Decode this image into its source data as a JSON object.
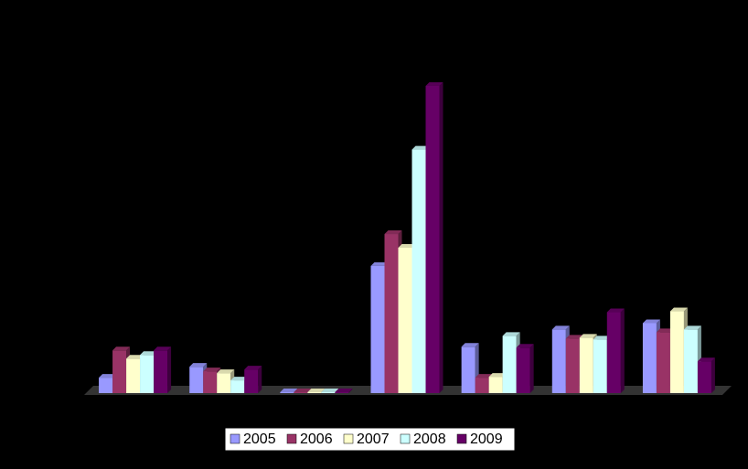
{
  "chart_data": {
    "type": "bar3d",
    "categories": [
      null,
      null,
      null,
      null,
      null,
      null,
      null
    ],
    "series": [
      {
        "name": "2005",
        "color": "#9999ff",
        "values": [
          17,
          29,
          1,
          140,
          51,
          70,
          77
        ]
      },
      {
        "name": "2006",
        "color": "#993366",
        "values": [
          47,
          24,
          1,
          175,
          17,
          60,
          67
        ]
      },
      {
        "name": "2007",
        "color": "#ffffcc",
        "values": [
          38,
          22,
          1,
          160,
          18,
          61,
          90
        ]
      },
      {
        "name": "2008",
        "color": "#ccffff",
        "values": [
          42,
          14,
          1,
          268,
          63,
          59,
          70
        ]
      },
      {
        "name": "2009",
        "color": "#660066",
        "values": [
          47,
          26,
          1,
          338,
          50,
          89,
          35
        ]
      }
    ],
    "ylim": [
      0,
      340
    ],
    "legend": "bottom"
  }
}
